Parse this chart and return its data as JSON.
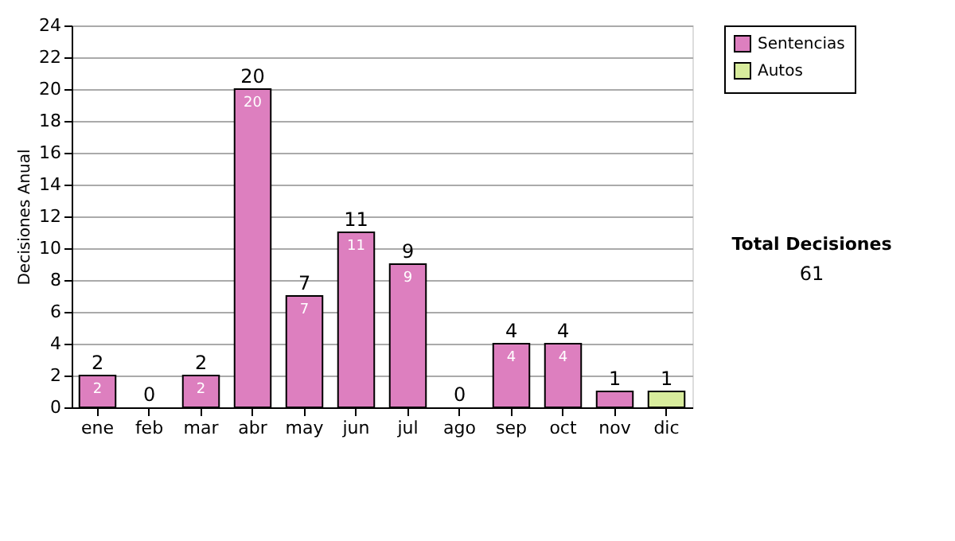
{
  "chart_data": {
    "type": "bar",
    "stacked": true,
    "ylabel": "Decisiones Anual",
    "categories": [
      "ene",
      "feb",
      "mar",
      "abr",
      "may",
      "jun",
      "jul",
      "ago",
      "sep",
      "oct",
      "nov",
      "dic"
    ],
    "series": [
      {
        "name": "Sentencias",
        "color": "#dd7fbf",
        "values": [
          2,
          0,
          2,
          20,
          7,
          11,
          9,
          0,
          4,
          4,
          1,
          0
        ],
        "value_labels": [
          "2",
          null,
          "2",
          "20",
          "7",
          "11",
          "9",
          null,
          "4",
          "4",
          null,
          null
        ]
      },
      {
        "name": "Autos",
        "color": "#d8ec9c",
        "values": [
          0,
          0,
          0,
          0,
          0,
          0,
          0,
          0,
          0,
          0,
          0,
          1
        ]
      }
    ],
    "totals": [
      "2",
      "0",
      "2",
      "20",
      "7",
      "11",
      "9",
      "0",
      "4",
      "4",
      "1",
      "1"
    ],
    "ylim": [
      0,
      24
    ],
    "yticks": [
      0,
      2,
      4,
      6,
      8,
      10,
      12,
      14,
      16,
      18,
      20,
      22,
      24
    ],
    "grid": "y",
    "legend": "right",
    "annotations": [
      "Total Decisiones",
      "61"
    ]
  }
}
